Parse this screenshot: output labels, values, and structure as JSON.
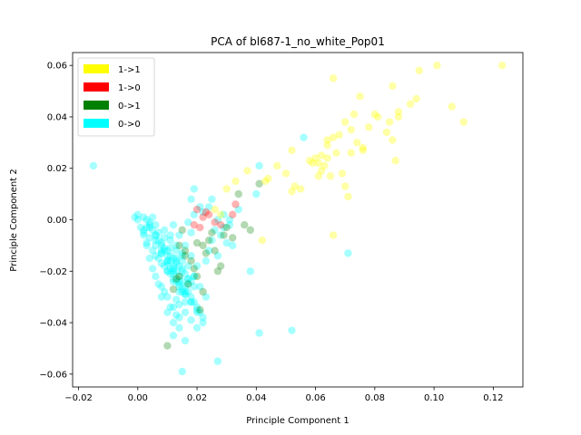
{
  "chart_data": {
    "type": "scatter",
    "title": "PCA of bl687-1_no_white_Pop01",
    "xlabel": "Principle Component 1",
    "ylabel": "Principle Component 2",
    "xlim": [
      -0.022,
      0.13
    ],
    "ylim": [
      -0.065,
      0.065
    ],
    "xticks": [
      -0.02,
      0.0,
      0.02,
      0.04,
      0.06,
      0.08,
      0.1,
      0.12
    ],
    "xtick_labels": [
      "−0.02",
      "0.00",
      "0.02",
      "0.04",
      "0.06",
      "0.08",
      "0.10",
      "0.12"
    ],
    "yticks": [
      -0.06,
      -0.04,
      -0.02,
      0.0,
      0.02,
      0.04,
      0.06
    ],
    "ytick_labels": [
      "−0.06",
      "−0.04",
      "−0.02",
      "0.00",
      "0.02",
      "0.04",
      "0.06"
    ],
    "grid": false,
    "legend_position": "top-left",
    "series": [
      {
        "name": "1->1",
        "color": "#ffff00",
        "x": [
          0.101,
          0.123,
          0.095,
          0.066,
          0.075,
          0.086,
          0.088,
          0.081,
          0.08,
          0.085,
          0.07,
          0.088,
          0.106,
          0.11,
          0.072,
          0.068,
          0.066,
          0.064,
          0.062,
          0.06,
          0.058,
          0.059,
          0.061,
          0.064,
          0.063,
          0.067,
          0.076,
          0.074,
          0.078,
          0.073,
          0.086,
          0.087,
          0.062,
          0.061,
          0.071,
          0.053,
          0.055,
          0.052,
          0.05,
          0.047,
          0.044,
          0.043,
          0.037,
          0.033,
          0.03,
          0.026,
          0.028,
          0.042,
          0.052,
          0.066,
          0.092,
          0.094,
          0.084,
          0.076,
          0.072,
          0.069,
          0.065,
          0.07,
          0.064
        ],
        "y": [
          0.06,
          0.06,
          0.058,
          0.055,
          0.048,
          0.052,
          0.042,
          0.04,
          0.041,
          0.038,
          0.038,
          0.04,
          0.044,
          0.038,
          0.035,
          0.033,
          0.032,
          0.031,
          0.025,
          0.024,
          0.023,
          0.022,
          0.022,
          0.024,
          0.021,
          0.026,
          0.027,
          0.03,
          0.036,
          0.041,
          0.031,
          0.023,
          0.019,
          0.017,
          0.009,
          0.013,
          0.012,
          0.011,
          0.018,
          0.021,
          0.016,
          0.015,
          0.019,
          0.015,
          0.012,
          0.004,
          0.002,
          -0.008,
          0.027,
          -0.006,
          0.045,
          0.047,
          0.034,
          0.028,
          0.026,
          0.018,
          0.017,
          0.013,
          0.029
        ]
      },
      {
        "name": "1->0",
        "color": "#ff0000",
        "x": [
          0.02,
          0.023,
          0.024,
          0.026,
          0.022,
          0.028,
          0.033,
          0.032,
          0.021,
          0.019
        ],
        "y": [
          0.004,
          0.003,
          0.002,
          -0.001,
          0.001,
          -0.002,
          0.006,
          0.002,
          -0.003,
          -0.002
        ],
        "alpha": 0.3
      },
      {
        "name": "0->1",
        "color": "#008000",
        "x": [
          0.041,
          0.034,
          0.038,
          0.036,
          0.032,
          0.028,
          0.026,
          0.024,
          0.022,
          0.02,
          0.018,
          0.016,
          0.02,
          0.022,
          0.014,
          0.013,
          0.021,
          0.029,
          0.015,
          0.01,
          0.012,
          0.019,
          0.027,
          0.017,
          0.023,
          0.016,
          0.014,
          0.025,
          0.03
        ],
        "y": [
          0.014,
          0.01,
          -0.004,
          -0.002,
          -0.007,
          -0.018,
          -0.012,
          -0.008,
          -0.01,
          -0.009,
          -0.016,
          -0.014,
          -0.022,
          -0.028,
          -0.022,
          -0.023,
          -0.035,
          -0.006,
          -0.004,
          -0.049,
          -0.027,
          -0.019,
          -0.02,
          -0.025,
          -0.013,
          -0.012,
          -0.01,
          -0.005,
          -0.003
        ],
        "alpha": 0.3
      },
      {
        "name": "0->0",
        "color": "#00ffff",
        "x": [
          -0.015,
          0.056,
          0.041,
          0.04,
          0.034,
          0.031,
          0.029,
          0.025,
          0.024,
          0.019,
          0.018,
          0.022,
          0.018,
          0.032,
          0.027,
          0.038,
          0.071,
          0.052,
          0.041,
          0.027,
          0.015,
          0.016,
          0.012,
          0.013,
          0.014,
          0.01,
          0.008,
          0.009,
          0.011,
          0.012,
          0.007,
          0.005,
          0.006,
          0.004,
          0.003,
          0.002,
          0.001,
          0.0,
          -0.001,
          0.0,
          0.002,
          0.003,
          0.004,
          0.005,
          0.006,
          0.007,
          0.008,
          0.009,
          0.01,
          0.011,
          0.012,
          0.013,
          0.014,
          0.015,
          0.016,
          0.017,
          0.018,
          0.019,
          0.02,
          0.021,
          0.022,
          0.023,
          0.024,
          0.025,
          0.026,
          0.027,
          0.028,
          0.029,
          0.03,
          0.031,
          0.008,
          0.01,
          0.012,
          0.014,
          0.016,
          0.011,
          0.009,
          0.013,
          0.015,
          0.017,
          0.007,
          0.006,
          0.005,
          0.004,
          0.003,
          0.002,
          0.006,
          0.008,
          0.01,
          0.012,
          0.014,
          0.016,
          0.018,
          0.02,
          0.022,
          0.009,
          0.011,
          0.013,
          0.015,
          0.01,
          0.012,
          0.014,
          0.016,
          0.011,
          0.013,
          0.015,
          0.017,
          0.019,
          0.021,
          0.023,
          0.012,
          0.014,
          0.016,
          0.018,
          0.02,
          0.008,
          0.01,
          0.012,
          0.014,
          0.003,
          0.005,
          0.007,
          0.009,
          0.011,
          0.013,
          0.015,
          0.004,
          0.006,
          0.008,
          0.01,
          0.012,
          0.014,
          0.016,
          0.018,
          0.002,
          0.004,
          0.006,
          0.008,
          0.01,
          0.012,
          0.006,
          0.008,
          0.01,
          0.012,
          0.014,
          0.016,
          0.018,
          0.02,
          0.009,
          0.011,
          0.013,
          0.015,
          0.017,
          0.019,
          0.014,
          0.016,
          0.018,
          0.02,
          0.017,
          0.019,
          0.021,
          0.013,
          0.015,
          0.017,
          0.019,
          0.011,
          0.013,
          0.015
        ],
        "y": [
          0.021,
          0.032,
          0.021,
          0.01,
          0.004,
          0.0,
          0.002,
          0.008,
          0.005,
          0.012,
          0.008,
          0.003,
          -0.005,
          -0.01,
          -0.014,
          -0.02,
          -0.013,
          -0.043,
          -0.044,
          -0.055,
          -0.059,
          -0.047,
          -0.045,
          -0.037,
          -0.042,
          -0.036,
          -0.03,
          -0.028,
          -0.034,
          -0.04,
          -0.025,
          -0.019,
          -0.022,
          -0.015,
          -0.01,
          -0.006,
          -0.003,
          0.0,
          0.001,
          0.002,
          0.001,
          0.0,
          -0.002,
          -0.004,
          -0.006,
          -0.008,
          -0.01,
          -0.012,
          -0.014,
          -0.016,
          -0.018,
          -0.02,
          -0.022,
          -0.024,
          -0.026,
          -0.028,
          -0.03,
          -0.032,
          -0.034,
          -0.036,
          -0.038,
          -0.016,
          -0.012,
          -0.008,
          -0.004,
          0.0,
          -0.006,
          -0.003,
          -0.009,
          -0.002,
          -0.013,
          -0.017,
          -0.021,
          -0.025,
          -0.029,
          -0.011,
          -0.007,
          -0.015,
          -0.019,
          -0.023,
          -0.005,
          -0.002,
          0.001,
          -0.001,
          -0.003,
          -0.005,
          -0.008,
          -0.012,
          -0.016,
          -0.02,
          -0.024,
          -0.028,
          -0.032,
          -0.036,
          -0.04,
          -0.004,
          -0.008,
          -0.012,
          -0.016,
          -0.02,
          -0.024,
          -0.028,
          -0.032,
          -0.006,
          -0.01,
          -0.014,
          -0.018,
          -0.022,
          -0.026,
          -0.03,
          -0.002,
          -0.006,
          -0.01,
          -0.014,
          -0.018,
          -0.026,
          -0.03,
          -0.034,
          -0.038,
          -0.009,
          -0.012,
          -0.015,
          -0.018,
          -0.021,
          -0.024,
          -0.027,
          -0.003,
          -0.006,
          -0.009,
          -0.012,
          -0.015,
          -0.018,
          -0.021,
          -0.024,
          -0.004,
          -0.007,
          -0.01,
          -0.013,
          -0.016,
          -0.019,
          -0.014,
          -0.017,
          -0.02,
          -0.023,
          -0.026,
          -0.029,
          -0.032,
          -0.035,
          -0.011,
          -0.014,
          -0.017,
          -0.02,
          -0.023,
          -0.026,
          -0.033,
          -0.036,
          -0.039,
          -0.042,
          -0.001,
          0.002,
          0.005,
          -0.031,
          -0.028,
          -0.025,
          -0.022,
          -0.019,
          -0.016,
          -0.013
        ],
        "alpha": 0.35
      }
    ]
  }
}
